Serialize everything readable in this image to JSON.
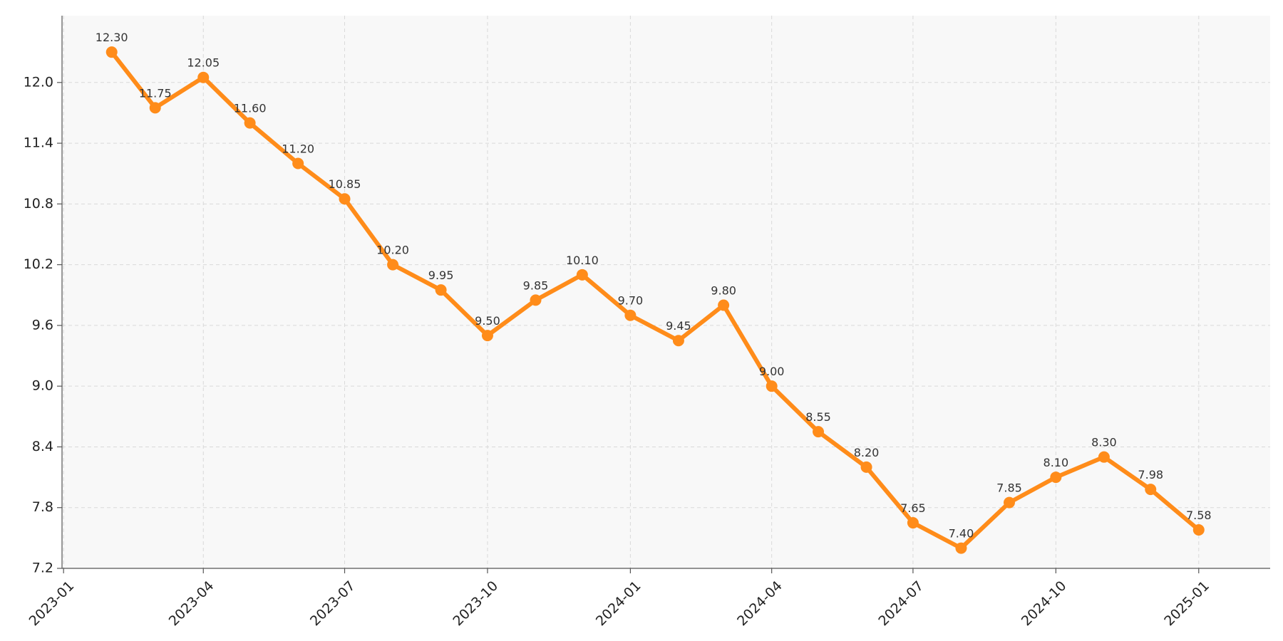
{
  "chart_data": {
    "type": "line",
    "title": "",
    "xlabel": "",
    "ylabel": "",
    "x": [
      "2023-02-01",
      "2023-03-01",
      "2023-04-01",
      "2023-05-01",
      "2023-06-01",
      "2023-07-01",
      "2023-08-01",
      "2023-09-01",
      "2023-10-01",
      "2023-11-01",
      "2023-12-01",
      "2024-01-01",
      "2024-02-01",
      "2024-03-01",
      "2024-04-01",
      "2024-05-01",
      "2024-06-01",
      "2024-07-01",
      "2024-08-01",
      "2024-09-01",
      "2024-10-01",
      "2024-11-01",
      "2024-12-01",
      "2025-01-01"
    ],
    "series": [
      {
        "values": [
          12.3,
          11.75,
          12.05,
          11.6,
          11.2,
          10.85,
          10.2,
          9.95,
          9.5,
          9.85,
          10.1,
          9.7,
          9.45,
          9.8,
          9.0,
          8.55,
          8.2,
          7.65,
          7.4,
          7.85,
          8.1,
          8.3,
          7.98,
          7.58
        ],
        "labels": [
          "12.30",
          "11.75",
          "12.05",
          "11.60",
          "11.20",
          "10.85",
          "10.20",
          "9.95",
          "9.50",
          "9.85",
          "10.10",
          "9.70",
          "9.45",
          "9.80",
          "9.00",
          "8.55",
          "8.20",
          "7.65",
          "7.40",
          "7.85",
          "8.10",
          "8.30",
          "7.98",
          "7.58"
        ],
        "color": "#ff8c1a"
      }
    ],
    "x_ticks": [
      {
        "date": "2023-01-01",
        "label": "2023-01"
      },
      {
        "date": "2023-04-01",
        "label": "2023-04"
      },
      {
        "date": "2023-07-01",
        "label": "2023-07"
      },
      {
        "date": "2023-10-01",
        "label": "2023-10"
      },
      {
        "date": "2024-01-01",
        "label": "2024-01"
      },
      {
        "date": "2024-04-01",
        "label": "2024-04"
      },
      {
        "date": "2024-07-01",
        "label": "2024-07"
      },
      {
        "date": "2024-10-01",
        "label": "2024-10"
      },
      {
        "date": "2025-01-01",
        "label": "2025-01"
      }
    ],
    "y_ticks": [
      {
        "value": 7.2,
        "label": "7.2"
      },
      {
        "value": 7.8,
        "label": "7.8"
      },
      {
        "value": 8.4,
        "label": "8.4"
      },
      {
        "value": 9.0,
        "label": "9.0"
      },
      {
        "value": 9.6,
        "label": "9.6"
      },
      {
        "value": 10.2,
        "label": "10.2"
      },
      {
        "value": 10.8,
        "label": "10.8"
      },
      {
        "value": 11.4,
        "label": "11.4"
      },
      {
        "value": 12.0,
        "label": "12.0"
      }
    ],
    "xlim": [
      "2022-12-31",
      "2025-02-16"
    ],
    "ylim": [
      7.2,
      12.66
    ],
    "grid": true,
    "legend": "none",
    "colors": {
      "plot_background": "#f8f8f8",
      "grid": "#d9d9d9",
      "axis": "#555555",
      "tick_text": "#222222",
      "label_text": "#333333"
    }
  }
}
